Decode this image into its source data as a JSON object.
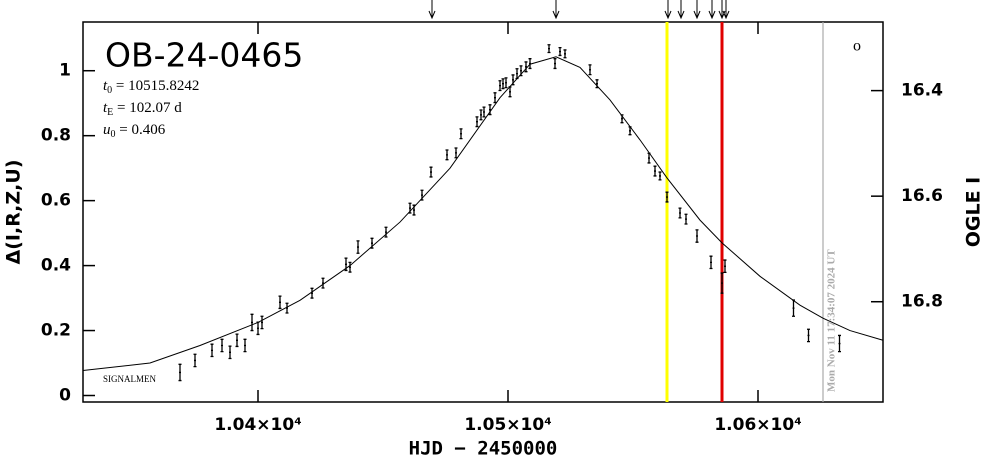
{
  "chart_data": {
    "type": "scatter",
    "title": "OB-24-0465",
    "params": [
      {
        "symbol": "t",
        "subscript": "0",
        "text": " = 10515.8242"
      },
      {
        "symbol": "t",
        "subscript": "E",
        "text": " = 102.07 d"
      },
      {
        "symbol": "u",
        "subscript": "0",
        "text": " = 0.406"
      }
    ],
    "note": "SIGNALMEN",
    "corner_symbol": "o",
    "xlabel": "HJD − 2450000",
    "ylabel": "Δ(I,R,Z,U)",
    "y2label": "OGLE I",
    "xlim": [
      10330,
      10650
    ],
    "ylim": [
      -0.02,
      1.15
    ],
    "y2lim": [
      16.99,
      16.27
    ],
    "xticks": [
      {
        "value": 10400,
        "label": "1.04×10⁴"
      },
      {
        "value": 10500,
        "label": "1.05×10⁴"
      },
      {
        "value": 10600,
        "label": "1.06×10⁴"
      }
    ],
    "yticks": [
      0,
      0.2,
      0.4,
      0.6,
      0.8,
      1
    ],
    "y2ticks": [
      16.4,
      16.6,
      16.8
    ],
    "color": "#000000",
    "x": [
      10368.8,
      10374.8,
      10381.6,
      10385.6,
      10388.8,
      10391.6,
      10394.8,
      10397.6,
      10400,
      10401.6,
      10408.8,
      10411.6,
      10421.6,
      10426,
      10435.2,
      10436.8,
      10440,
      10445.6,
      10451.2,
      10460.8,
      10462.4,
      10465.6,
      10469.2,
      10475.6,
      10479.2,
      10481.2,
      10487.6,
      10489.2,
      10490.4,
      10492.8,
      10494.8,
      10496.8,
      10498,
      10499.2,
      10500.8,
      10502,
      10503.6,
      10505.2,
      10507.2,
      10508.8,
      10516.4,
      10518.8,
      10520.8,
      10522.8,
      10532.8,
      10535.6,
      10545.6,
      10548.8,
      10556.4,
      10558.8,
      10560.8,
      10563.6,
      10568.8,
      10571.2,
      10575.6,
      10581.2,
      10585.6,
      10586.8,
      10614.2,
      10620.2,
      10632.6
    ],
    "values": [
      0.071,
      0.108,
      0.139,
      0.154,
      0.133,
      0.17,
      0.154,
      0.225,
      0.207,
      0.225,
      0.287,
      0.269,
      0.315,
      0.346,
      0.404,
      0.395,
      0.457,
      0.469,
      0.503,
      0.577,
      0.571,
      0.617,
      0.688,
      0.741,
      0.747,
      0.806,
      0.843,
      0.864,
      0.873,
      0.88,
      0.917,
      0.954,
      0.96,
      0.963,
      0.935,
      0.972,
      0.991,
      1.0,
      1.012,
      1.022,
      1.068,
      1.022,
      1.059,
      1.052,
      1.003,
      0.96,
      0.852,
      0.815,
      0.731,
      0.691,
      0.676,
      0.611,
      0.562,
      0.543,
      0.491,
      0.41,
      0.346,
      0.398,
      0.269,
      0.185,
      0.16
    ],
    "errors": [
      0.025,
      0.019,
      0.019,
      0.019,
      0.019,
      0.019,
      0.019,
      0.025,
      0.019,
      0.019,
      0.019,
      0.015,
      0.015,
      0.015,
      0.019,
      0.015,
      0.019,
      0.015,
      0.015,
      0.015,
      0.015,
      0.015,
      0.015,
      0.015,
      0.015,
      0.015,
      0.015,
      0.015,
      0.015,
      0.015,
      0.015,
      0.015,
      0.015,
      0.015,
      0.015,
      0.015,
      0.015,
      0.015,
      0.015,
      0.015,
      0.012,
      0.015,
      0.012,
      0.012,
      0.015,
      0.012,
      0.012,
      0.012,
      0.015,
      0.015,
      0.012,
      0.015,
      0.015,
      0.015,
      0.019,
      0.019,
      0.031,
      0.019,
      0.025,
      0.019,
      0.025
    ],
    "model": {
      "x": [
        10330,
        10356.8,
        10376.8,
        10400,
        10416.8,
        10436.8,
        10456.8,
        10476.8,
        10496.8,
        10508.8,
        10519.2,
        10528.8,
        10540.8,
        10552.8,
        10563.6,
        10576.8,
        10585.6,
        10600.8,
        10616.8,
        10626,
        10636.8,
        10650
      ],
      "y": [
        0.077,
        0.1,
        0.154,
        0.225,
        0.293,
        0.4,
        0.534,
        0.7,
        0.917,
        1.02,
        1.043,
        1.01,
        0.91,
        0.787,
        0.67,
        0.54,
        0.47,
        0.367,
        0.278,
        0.238,
        0.2,
        0.17
      ]
    },
    "arrows_x": [
      10469.6,
      10519.2,
      10564,
      10569.2,
      10575.6,
      10581.6,
      10585.6,
      10587.2
    ],
    "vlines": [
      {
        "x": 10563.6,
        "color": "#ffff00"
      },
      {
        "x": 10585.6,
        "color": "#e00000"
      },
      {
        "x": 10626,
        "color": "#aaaaaa",
        "label": "Mon Nov 11 17:34:07 2024 UT"
      }
    ]
  }
}
